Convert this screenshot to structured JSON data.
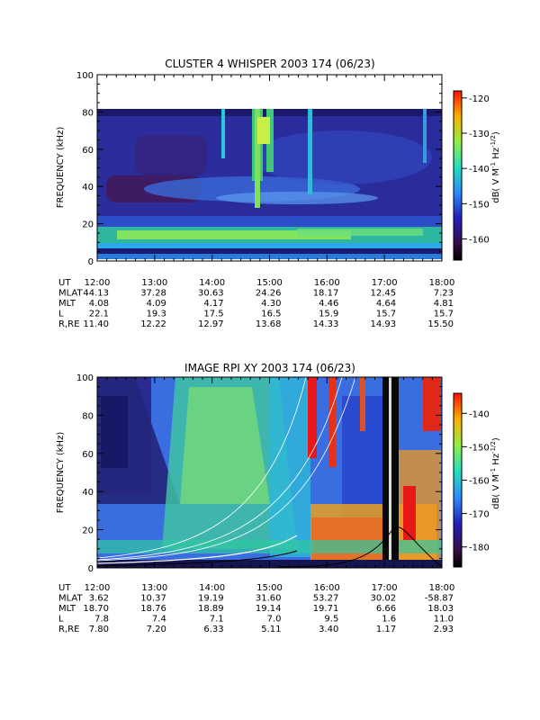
{
  "chart_data": [
    {
      "type": "heatmap",
      "title": "CLUSTER 4 WHISPER 2003 174 (06/23)",
      "ylabel": "FREQUENCY (kHz)",
      "ylim": [
        0,
        100
      ],
      "yticks": [
        "0",
        "20",
        "40",
        "60",
        "80",
        "100"
      ],
      "data_ylim": [
        0,
        80
      ],
      "xlim": [
        "12:00",
        "18:00"
      ],
      "colorbar": {
        "label": "dB( V M-1 Hz-1/2)",
        "label_main": "dB( V M",
        "label_exp1": "-1",
        "label_mid": " Hz",
        "label_exp2": "-1/2",
        "label_close": ")",
        "range": [
          -166,
          -118
        ],
        "ticks": [
          "-120",
          "-130",
          "-140",
          "-150",
          "-160"
        ],
        "tick_values": [
          -120,
          -130,
          -140,
          -150,
          -160
        ]
      },
      "ephemeris": {
        "times": [
          "12:00",
          "13:00",
          "14:00",
          "15:00",
          "16:00",
          "17:00",
          "18:00"
        ],
        "rows": [
          {
            "label": "UT",
            "values": [
              "",
              "",
              "",
              "",
              "",
              "",
              ""
            ]
          },
          {
            "label": "MLAT",
            "values": [
              "44.13",
              "37.28",
              "30.63",
              "24.26",
              "18.17",
              "12.45",
              "7.23"
            ]
          },
          {
            "label": "MLT",
            "values": [
              "4.08",
              "4.09",
              "4.17",
              "4.30",
              "4.46",
              "4.64",
              "4.81"
            ]
          },
          {
            "label": "L",
            "values": [
              "22.1",
              "19.3",
              "17.5",
              "16.5",
              "15.9",
              "15.7",
              "15.7"
            ]
          },
          {
            "label": "R,RE",
            "values": [
              "11.40",
              "12.22",
              "12.97",
              "13.68",
              "14.33",
              "14.93",
              "15.50"
            ]
          }
        ]
      }
    },
    {
      "type": "heatmap",
      "title": "IMAGE RPI XY 2003 174 (06/23)",
      "ylabel": "FREQUENCY (kHz)",
      "ylim": [
        0,
        100
      ],
      "yticks": [
        "0",
        "20",
        "40",
        "60",
        "80",
        "100"
      ],
      "xlim": [
        "12:00",
        "18:00"
      ],
      "colorbar": {
        "label": "dB( V M-1 Hz-1/2)",
        "label_main": "dB( V M",
        "label_exp1": "-1",
        "label_mid": " Hz",
        "label_exp2": "-1/2",
        "label_close": ")",
        "range": [
          -186,
          -134
        ],
        "ticks": [
          "-140",
          "-150",
          "-160",
          "-170",
          "-180"
        ],
        "tick_values": [
          -140,
          -150,
          -160,
          -170,
          -180
        ]
      },
      "ephemeris": {
        "times": [
          "12:00",
          "13:00",
          "14:00",
          "15:00",
          "16:00",
          "17:00",
          "18:00"
        ],
        "rows": [
          {
            "label": "UT",
            "values": [
              "",
              "",
              "",
              "",
              "",
              "",
              ""
            ]
          },
          {
            "label": "MLAT",
            "values": [
              "3.62",
              "10.37",
              "19.19",
              "31.60",
              "53.27",
              "30.02",
              "-58.87"
            ]
          },
          {
            "label": "MLT",
            "values": [
              "18.70",
              "18.76",
              "18.89",
              "19.14",
              "19.71",
              "6.66",
              "18.03"
            ]
          },
          {
            "label": "L",
            "values": [
              "7.8",
              "7.4",
              "7.1",
              "7.0",
              "9.5",
              "1.6",
              "11.0"
            ]
          },
          {
            "label": "R,RE",
            "values": [
              "7.80",
              "7.20",
              "6.33",
              "5.11",
              "3.40",
              "1.17",
              "2.93"
            ]
          }
        ]
      }
    }
  ]
}
